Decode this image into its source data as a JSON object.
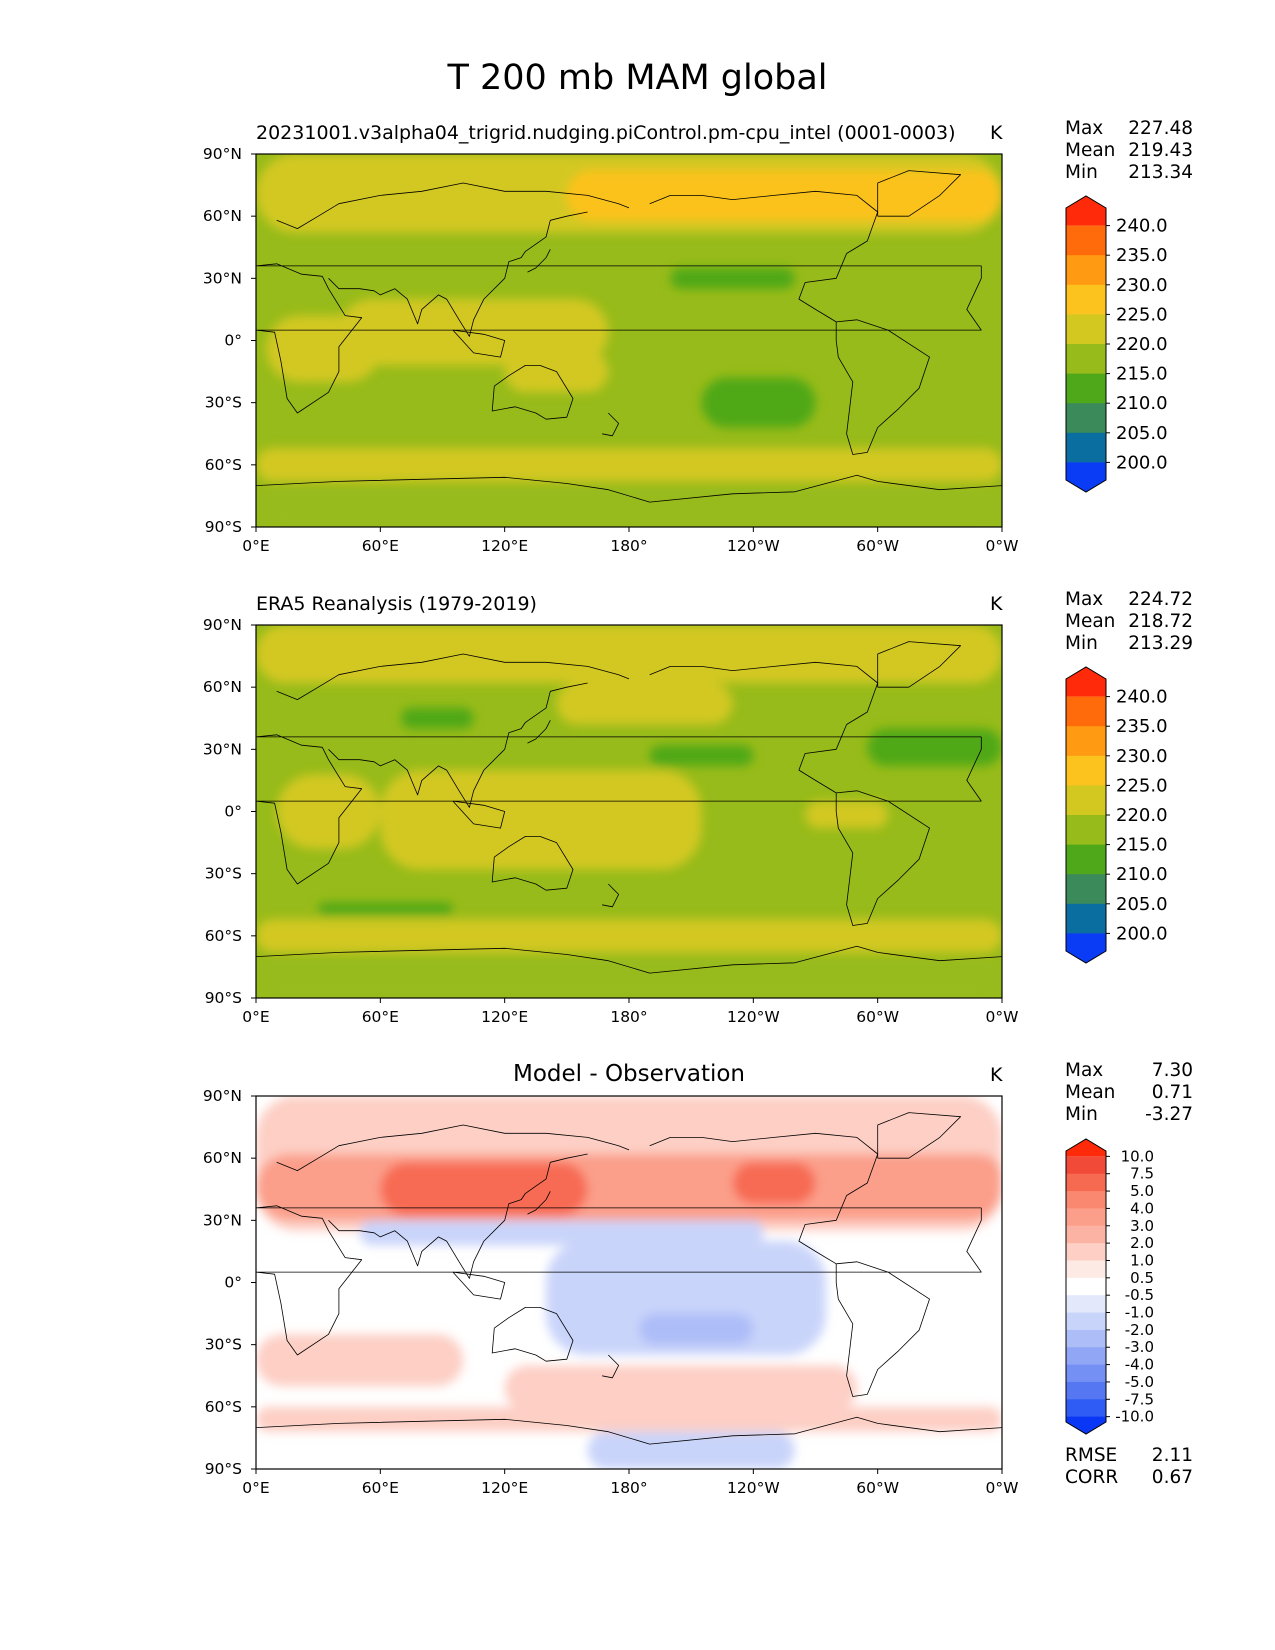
{
  "figure": {
    "title": "T 200 mb MAM global"
  },
  "axes": {
    "lat_ticks": [
      "90°N",
      "60°N",
      "30°N",
      "0°",
      "30°S",
      "60°S",
      "90°S"
    ],
    "lon_ticks": [
      "0°E",
      "60°E",
      "120°E",
      "180°",
      "120°W",
      "60°W",
      "0°W"
    ]
  },
  "panels": [
    {
      "title": "20231001.v3alpha04_trigrid.nudging.piControl.pm-cpu_intel (0001-0003)",
      "units": "K",
      "stats": [
        [
          "Max",
          "227.48"
        ],
        [
          "Mean",
          "219.43"
        ],
        [
          "Min",
          "213.34"
        ]
      ]
    },
    {
      "title": "ERA5 Reanalysis (1979-2019)",
      "units": "K",
      "stats": [
        [
          "Max",
          "224.72"
        ],
        [
          "Mean",
          "218.72"
        ],
        [
          "Min",
          "213.29"
        ]
      ]
    },
    {
      "title": "Model - Observation",
      "units": "K",
      "stats": [
        [
          "Max",
          "7.30"
        ],
        [
          "Mean",
          "0.71"
        ],
        [
          "Min",
          "-3.27"
        ]
      ],
      "metrics": [
        [
          "RMSE",
          "2.11"
        ],
        [
          "CORR",
          "0.67"
        ]
      ]
    }
  ],
  "colorbars": {
    "abs": {
      "labels": [
        "240.0",
        "235.0",
        "230.0",
        "225.0",
        "220.0",
        "215.0",
        "210.0",
        "205.0",
        "200.0"
      ],
      "colors": [
        "#ff2a0a",
        "#ff6a0a",
        "#ff9a12",
        "#fcc21e",
        "#d3c820",
        "#97bb1a",
        "#4fa819",
        "#3a8a5a",
        "#0a6fa0",
        "#0a3cf5"
      ]
    },
    "diff": {
      "labels": [
        "10.0",
        "7.5",
        "5.0",
        "4.0",
        "3.0",
        "2.0",
        "1.0",
        "0.5",
        "-0.5",
        "-1.0",
        "-2.0",
        "-3.0",
        "-4.0",
        "-5.0",
        "-7.5",
        "-10.0"
      ],
      "colors": [
        "#ff2a0a",
        "#f24a38",
        "#f76a52",
        "#fa8870",
        "#fb9f8a",
        "#fcb3a3",
        "#fdcfc5",
        "#feeae5",
        "#ffffff",
        "#e3e9fb",
        "#c9d4fa",
        "#adbdf8",
        "#92a6f6",
        "#7590f4",
        "#5577f2",
        "#2f5cf4",
        "#0a36f5"
      ]
    }
  },
  "chart_data": [
    {
      "type": "heatmap",
      "title": "20231001.v3alpha04_trigrid.nudging.piControl.pm-cpu_intel (0001-0003)",
      "variable": "T 200 mb MAM",
      "units": "K",
      "xlim": [
        0,
        360
      ],
      "ylim": [
        -90,
        90
      ],
      "levels": [
        200,
        205,
        210,
        215,
        220,
        225,
        230,
        235,
        240
      ],
      "stats": {
        "max": 227.48,
        "mean": 219.43,
        "min": 213.34
      },
      "base_value": 217.5,
      "regions": [
        {
          "lon": [
            0,
            360
          ],
          "lat": [
            -90,
            -70
          ],
          "value": 217.5
        },
        {
          "lon": [
            0,
            360
          ],
          "lat": [
            -68,
            -52
          ],
          "value": 222.5
        },
        {
          "lon": [
            0,
            360
          ],
          "lat": [
            52,
            90
          ],
          "value": 222.5
        },
        {
          "lon": [
            0,
            360
          ],
          "lat": [
            -68,
            -52
          ],
          "value": 222.5
        },
        {
          "lon": [
            5,
            60
          ],
          "lat": [
            -20,
            12
          ],
          "value": 222.5
        },
        {
          "lon": [
            40,
            170
          ],
          "lat": [
            -12,
            20
          ],
          "value": 222.5
        },
        {
          "lon": [
            120,
            170
          ],
          "lat": [
            -25,
            -5
          ],
          "value": 222.5
        },
        {
          "lon": [
            150,
            360
          ],
          "lat": [
            58,
            82
          ],
          "value": 227.0
        },
        {
          "lon": [
            200,
            260
          ],
          "lat": [
            25,
            35
          ],
          "value": 212.5
        },
        {
          "lon": [
            215,
            270
          ],
          "lat": [
            -42,
            -18
          ],
          "value": 212.5
        }
      ]
    },
    {
      "type": "heatmap",
      "title": "ERA5 Reanalysis (1979-2019)",
      "variable": "T 200 mb MAM",
      "units": "K",
      "xlim": [
        0,
        360
      ],
      "ylim": [
        -90,
        90
      ],
      "levels": [
        200,
        205,
        210,
        215,
        220,
        225,
        230,
        235,
        240
      ],
      "stats": {
        "max": 224.72,
        "mean": 218.72,
        "min": 213.29
      },
      "base_value": 217.5,
      "regions": [
        {
          "lon": [
            0,
            360
          ],
          "lat": [
            -90,
            -70
          ],
          "value": 217.5
        },
        {
          "lon": [
            0,
            360
          ],
          "lat": [
            -68,
            -52
          ],
          "value": 222.5
        },
        {
          "lon": [
            0,
            360
          ],
          "lat": [
            62,
            90
          ],
          "value": 222.5
        },
        {
          "lon": [
            145,
            230
          ],
          "lat": [
            42,
            62
          ],
          "value": 222.5
        },
        {
          "lon": [
            10,
            60
          ],
          "lat": [
            -18,
            18
          ],
          "value": 222.5
        },
        {
          "lon": [
            60,
            215
          ],
          "lat": [
            -28,
            20
          ],
          "value": 222.5
        },
        {
          "lon": [
            265,
            305
          ],
          "lat": [
            -8,
            5
          ],
          "value": 222.5
        },
        {
          "lon": [
            70,
            105
          ],
          "lat": [
            40,
            50
          ],
          "value": 212.5
        },
        {
          "lon": [
            190,
            240
          ],
          "lat": [
            22,
            32
          ],
          "value": 212.5
        },
        {
          "lon": [
            295,
            360
          ],
          "lat": [
            22,
            40
          ],
          "value": 212.5
        },
        {
          "lon": [
            30,
            95
          ],
          "lat": [
            -50,
            -44
          ],
          "value": 212.5
        }
      ]
    },
    {
      "type": "heatmap",
      "title": "Model - Observation",
      "variable": "T 200 mb MAM difference",
      "units": "K",
      "xlim": [
        0,
        360
      ],
      "ylim": [
        -90,
        90
      ],
      "levels": [
        -10,
        -7.5,
        -5,
        -4,
        -3,
        -2,
        -1,
        -0.5,
        0.5,
        1,
        2,
        3,
        4,
        5,
        7.5,
        10
      ],
      "stats": {
        "max": 7.3,
        "mean": 0.71,
        "min": -3.27
      },
      "metrics": {
        "rmse": 2.11,
        "corr": 0.67
      },
      "base_value": 0.0,
      "regions": [
        {
          "lon": [
            0,
            360
          ],
          "lat": [
            25,
            90
          ],
          "value": 1.5
        },
        {
          "lon": [
            0,
            360
          ],
          "lat": [
            30,
            62
          ],
          "value": 3.5
        },
        {
          "lon": [
            60,
            160
          ],
          "lat": [
            32,
            58
          ],
          "value": 6.0
        },
        {
          "lon": [
            230,
            270
          ],
          "lat": [
            38,
            58
          ],
          "value": 5.0
        },
        {
          "lon": [
            290,
            360
          ],
          "lat": [
            40,
            62
          ],
          "value": 3.5
        },
        {
          "lon": [
            50,
            245
          ],
          "lat": [
            18,
            30
          ],
          "value": -1.5
        },
        {
          "lon": [
            140,
            275
          ],
          "lat": [
            -35,
            20
          ],
          "value": -1.5
        },
        {
          "lon": [
            185,
            240
          ],
          "lat": [
            -30,
            -15
          ],
          "value": -2.5
        },
        {
          "lon": [
            0,
            100
          ],
          "lat": [
            -50,
            -25
          ],
          "value": 1.5
        },
        {
          "lon": [
            120,
            290
          ],
          "lat": [
            -62,
            -40
          ],
          "value": 1.5
        },
        {
          "lon": [
            0,
            360
          ],
          "lat": [
            -72,
            -60
          ],
          "value": 1.5
        },
        {
          "lon": [
            160,
            260
          ],
          "lat": [
            -90,
            -72
          ],
          "value": -1.5
        }
      ]
    }
  ]
}
